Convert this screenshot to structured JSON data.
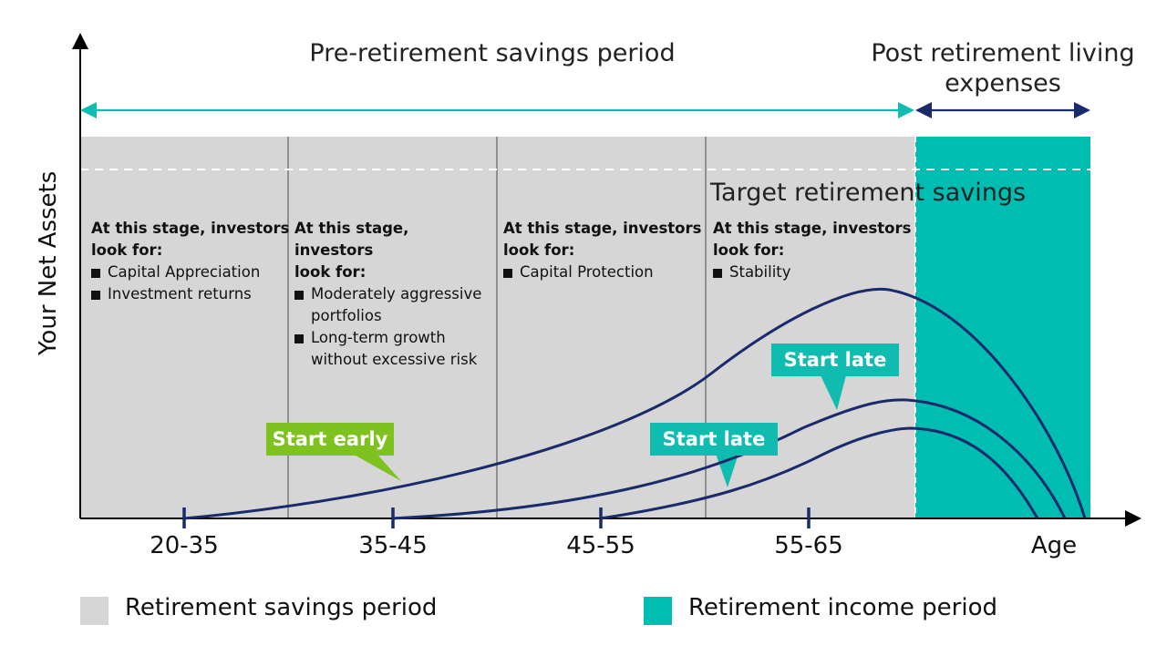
{
  "colors": {
    "savings_bg": "#d6d6d6",
    "income_bg": "#00bdb2",
    "teal_arrow": "#10bcb0",
    "navy": "#1b2a6b",
    "green": "#7dc21f"
  },
  "headers": {
    "pre_retirement": "Pre-retirement savings period",
    "post_retirement_line1": "Post retirement living",
    "post_retirement_line2": "expenses"
  },
  "axes": {
    "y_label": "Your Net Assets",
    "x_ticks": [
      "20-35",
      "35-45",
      "45-55",
      "55-65"
    ],
    "x_end_label": "Age"
  },
  "target_label": "Target retirement savings",
  "stages": [
    {
      "heading_line1": "At this stage, investors",
      "heading_line2": "look for:",
      "items": [
        "Capital Appreciation",
        "Investment returns"
      ]
    },
    {
      "heading_line1": "At this stage, investors",
      "heading_line2": "look for:",
      "items": [
        "Moderately aggressive portfolios",
        "Long-term growth without excessive risk"
      ]
    },
    {
      "heading_line1": "At this stage, investors",
      "heading_line2": "look for:",
      "items": [
        "Capital Protection"
      ]
    },
    {
      "heading_line1": "At this stage, investors",
      "heading_line2": "look for:",
      "items": [
        "Stability"
      ]
    }
  ],
  "callouts": {
    "start_early": "Start early",
    "start_late_1": "Start late",
    "start_late_2": "Start late"
  },
  "legend": {
    "savings": "Retirement savings period",
    "income": "Retirement income period"
  },
  "icons": {
    "bullet": "square-bullet-icon",
    "arrowheads": "triangle-arrow-icon"
  }
}
